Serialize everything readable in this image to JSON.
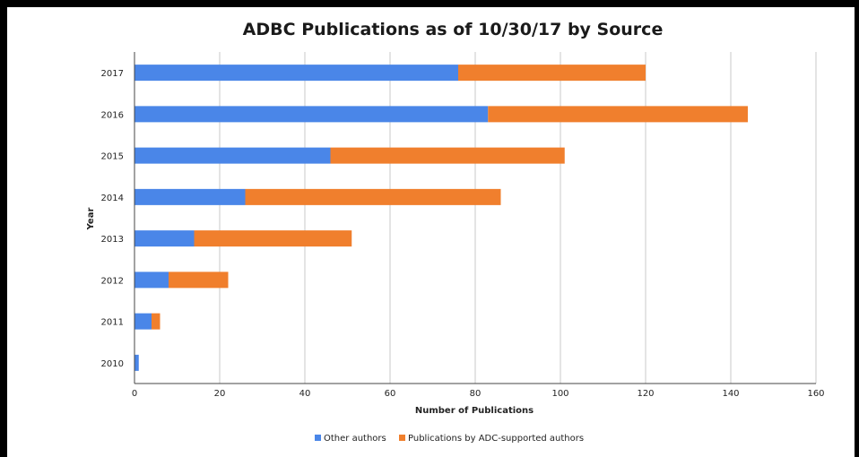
{
  "chart_data": {
    "type": "bar",
    "orientation": "horizontal",
    "stacked": true,
    "title": "ADBC Publications as of 10/30/17 by Source",
    "xlabel": "Number of Publications",
    "ylabel": "Year",
    "categories": [
      "2017",
      "2016",
      "2015",
      "2014",
      "2013",
      "2012",
      "2011",
      "2010"
    ],
    "series": [
      {
        "name": "Other authors",
        "color": "#4a86e8",
        "values": [
          76,
          83,
          46,
          26,
          14,
          8,
          4,
          1
        ]
      },
      {
        "name": "Publications by ADC-supported authors",
        "color": "#f07f2d",
        "values": [
          44,
          61,
          55,
          60,
          37,
          14,
          2,
          0
        ]
      }
    ],
    "xlim": [
      0,
      160
    ],
    "xticks": [
      0,
      20,
      40,
      60,
      80,
      100,
      120,
      140,
      160
    ],
    "grid": true,
    "legend_position": "bottom"
  }
}
